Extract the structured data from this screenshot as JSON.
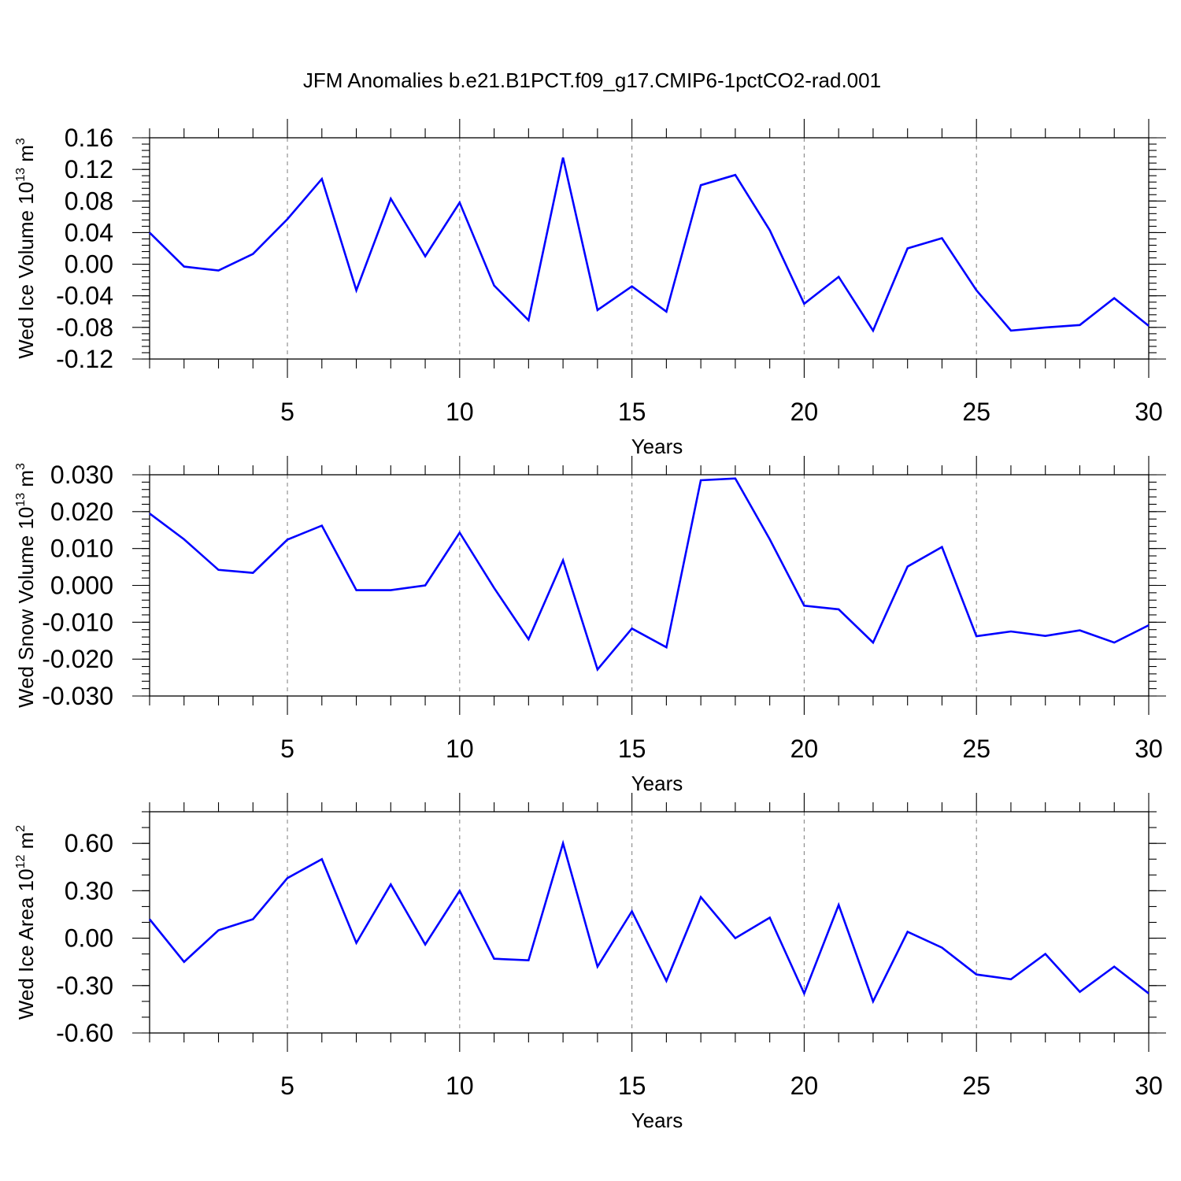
{
  "figure_title": "JFM Anomalies b.e21.B1PCT.f09_g17.CMIP6-1pctCO2-rad.001",
  "colors": {
    "line": "#0000ff",
    "grid": "#888888"
  },
  "chart_data": [
    {
      "type": "line",
      "ylabel_main": "Wed Ice Volume 10",
      "ylabel_exp": "13",
      "ylabel_unit": " m",
      "ylabel_unit_exp": "3",
      "xlabel": "Years",
      "xlim": [
        1,
        30
      ],
      "x_ticks": [
        5,
        10,
        15,
        20,
        25,
        30
      ],
      "ylim": [
        -0.12,
        0.16
      ],
      "y_ticks": [
        "-0.12",
        "-0.08",
        "-0.04",
        "0.00",
        "0.04",
        "0.08",
        "0.12",
        "0.16"
      ],
      "y_minor_step": 0.008,
      "x_grid": true,
      "x": [
        1,
        2,
        3,
        4,
        5,
        6,
        7,
        8,
        9,
        10,
        11,
        12,
        13,
        14,
        15,
        16,
        17,
        18,
        19,
        20,
        21,
        22,
        23,
        24,
        25,
        26,
        27,
        28,
        29,
        30
      ],
      "series": [
        {
          "values": [
            0.04,
            -0.003,
            -0.008,
            0.013,
            0.057,
            0.108,
            -0.033,
            0.083,
            0.01,
            0.078,
            -0.027,
            -0.071,
            0.135,
            -0.058,
            -0.028,
            -0.06,
            0.1,
            0.113,
            0.043,
            -0.05,
            -0.016,
            -0.084,
            0.02,
            0.033,
            -0.033,
            -0.084,
            -0.08,
            -0.077,
            -0.043,
            -0.078
          ]
        }
      ]
    },
    {
      "type": "line",
      "ylabel_main": "Wed Snow Volume 10",
      "ylabel_exp": "13",
      "ylabel_unit": " m",
      "ylabel_unit_exp": "3",
      "xlabel": "Years",
      "xlim": [
        1,
        30
      ],
      "x_ticks": [
        5,
        10,
        15,
        20,
        25,
        30
      ],
      "ylim": [
        -0.03,
        0.03
      ],
      "y_ticks": [
        "-0.030",
        "-0.020",
        "-0.010",
        "0.000",
        "0.010",
        "0.020",
        "0.030"
      ],
      "y_minor_step": 0.002,
      "x_grid": true,
      "x": [
        1,
        2,
        3,
        4,
        5,
        6,
        7,
        8,
        9,
        10,
        11,
        12,
        13,
        14,
        15,
        16,
        17,
        18,
        19,
        20,
        21,
        22,
        23,
        24,
        25,
        26,
        27,
        28,
        29,
        30
      ],
      "series": [
        {
          "values": [
            0.0195,
            0.0125,
            0.0042,
            0.0034,
            0.0124,
            0.0162,
            -0.0013,
            -0.0013,
            0.0,
            0.0143,
            -0.0007,
            -0.0146,
            0.0068,
            -0.0228,
            -0.0117,
            -0.0168,
            0.0285,
            0.029,
            0.0125,
            -0.0055,
            -0.0065,
            -0.0155,
            0.0051,
            0.0104,
            -0.0138,
            -0.0125,
            -0.0137,
            -0.0122,
            -0.0155,
            -0.0108
          ]
        }
      ]
    },
    {
      "type": "line",
      "ylabel_main": "Wed Ice Area 10",
      "ylabel_exp": "12",
      "ylabel_unit": " m",
      "ylabel_unit_exp": "2",
      "xlabel": "Years",
      "xlim": [
        1,
        30
      ],
      "x_ticks": [
        5,
        10,
        15,
        20,
        25,
        30
      ],
      "ylim": [
        -0.6,
        0.8
      ],
      "y_ticks": [
        "-0.60",
        "-0.30",
        "0.00",
        "0.30",
        "0.60"
      ],
      "y_minor_step": 0.1,
      "x_grid": true,
      "x": [
        1,
        2,
        3,
        4,
        5,
        6,
        7,
        8,
        9,
        10,
        11,
        12,
        13,
        14,
        15,
        16,
        17,
        18,
        19,
        20,
        21,
        22,
        23,
        24,
        25,
        26,
        27,
        28,
        29,
        30
      ],
      "series": [
        {
          "values": [
            0.12,
            -0.15,
            0.05,
            0.12,
            0.38,
            0.5,
            -0.03,
            0.34,
            -0.04,
            0.3,
            -0.13,
            -0.14,
            0.6,
            -0.18,
            0.17,
            -0.27,
            0.26,
            0.0,
            0.13,
            -0.35,
            0.21,
            -0.4,
            0.04,
            -0.06,
            -0.23,
            -0.26,
            -0.1,
            -0.34,
            -0.18,
            -0.35
          ]
        }
      ]
    }
  ]
}
